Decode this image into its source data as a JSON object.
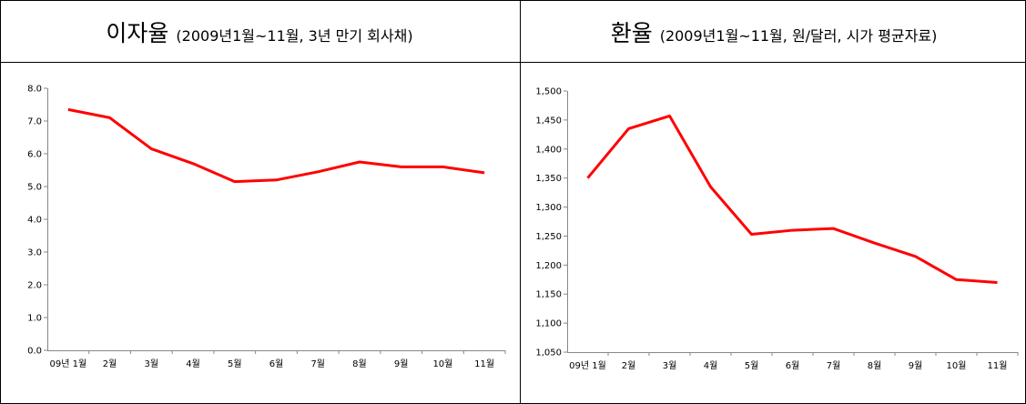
{
  "chart_data": [
    {
      "type": "line",
      "title": "이자율",
      "subtitle": "(2009년1월~11월, 3년 만기 회사채)",
      "categories": [
        "09년 1월",
        "2월",
        "3월",
        "4월",
        "5월",
        "6월",
        "7월",
        "8월",
        "9월",
        "10월",
        "11월"
      ],
      "series": [
        {
          "name": "이자율",
          "color": "#ff0000",
          "values": [
            7.35,
            7.1,
            6.15,
            5.7,
            5.15,
            5.2,
            5.45,
            5.75,
            5.6,
            5.6,
            5.42
          ]
        }
      ],
      "ylim": [
        0,
        8
      ],
      "yticks": [
        {
          "value": 0,
          "label": "0.0"
        },
        {
          "value": 1,
          "label": "1.0"
        },
        {
          "value": 2,
          "label": "2.0"
        },
        {
          "value": 3,
          "label": "3.0"
        },
        {
          "value": 4,
          "label": "4.0"
        },
        {
          "value": 5,
          "label": "5.0"
        },
        {
          "value": 6,
          "label": "6.0"
        },
        {
          "value": 7,
          "label": "7.0"
        },
        {
          "value": 8,
          "label": "8.0"
        }
      ],
      "grid": false
    },
    {
      "type": "line",
      "title": "환율",
      "subtitle": "(2009년1월~11월, 원/달러, 시가 평균자료)",
      "categories": [
        "09년 1월",
        "2월",
        "3월",
        "4월",
        "5월",
        "6월",
        "7월",
        "8월",
        "9월",
        "10월",
        "11월"
      ],
      "series": [
        {
          "name": "환율",
          "color": "#ff0000",
          "values": [
            1350,
            1435,
            1457,
            1335,
            1253,
            1260,
            1263,
            1238,
            1215,
            1175,
            1170
          ]
        }
      ],
      "ylim": [
        1050,
        1500
      ],
      "yticks": [
        {
          "value": 1050,
          "label": "1,050"
        },
        {
          "value": 1100,
          "label": "1,100"
        },
        {
          "value": 1150,
          "label": "1,150"
        },
        {
          "value": 1200,
          "label": "1,200"
        },
        {
          "value": 1250,
          "label": "1,250"
        },
        {
          "value": 1300,
          "label": "1,300"
        },
        {
          "value": 1350,
          "label": "1,350"
        },
        {
          "value": 1400,
          "label": "1,400"
        },
        {
          "value": 1450,
          "label": "1,450"
        },
        {
          "value": 1500,
          "label": "1,500"
        }
      ],
      "grid": false
    }
  ]
}
